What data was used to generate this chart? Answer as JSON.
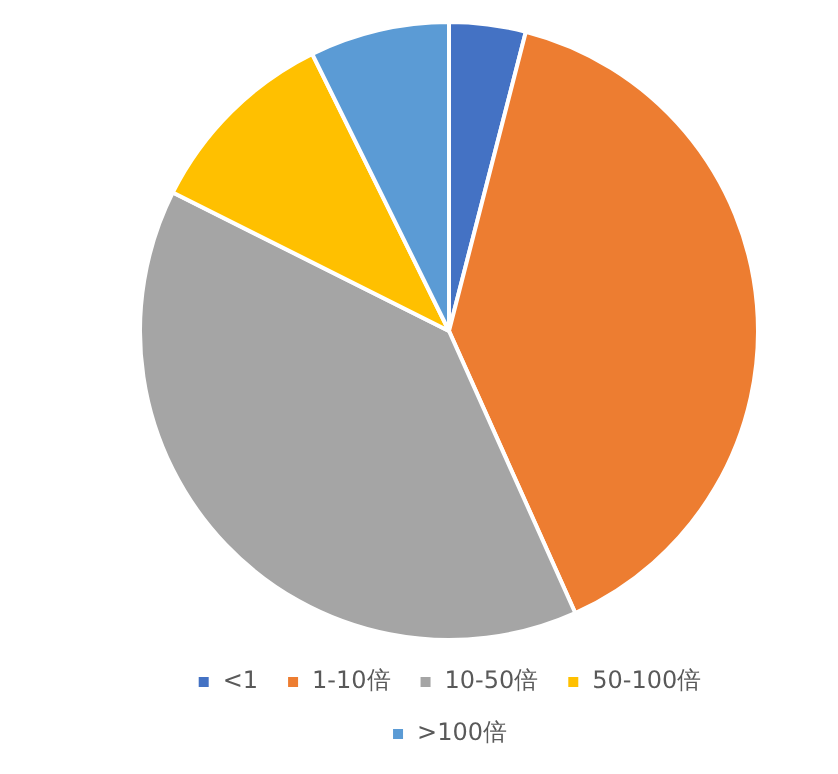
{
  "chart_data": {
    "type": "pie",
    "categories": [
      "<1",
      "1-10倍",
      "10-50倍",
      "50-100倍",
      ">100倍"
    ],
    "values": [
      4,
      39.3,
      39.1,
      10.3,
      7.3
    ],
    "colors": [
      "#4472c4",
      "#ed7d31",
      "#a5a5a5",
      "#ffc000",
      "#5b9bd5"
    ],
    "legend": "bottom"
  }
}
